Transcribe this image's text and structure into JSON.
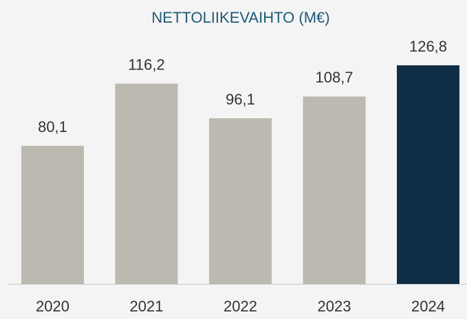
{
  "chart_data": {
    "type": "bar",
    "title": "NETTOLIIKEVAIHTO (M€)",
    "categories": [
      "2020",
      "2021",
      "2022",
      "2023",
      "2024"
    ],
    "values": [
      80.1,
      116.2,
      96.1,
      108.7,
      126.8
    ],
    "value_labels": [
      "80,1",
      "116,2",
      "96,1",
      "108,7",
      "126,8"
    ],
    "colors": [
      "#bcb9b1",
      "#bcb9b1",
      "#bcb9b1",
      "#bcb9b1",
      "#0f2d45"
    ]
  }
}
